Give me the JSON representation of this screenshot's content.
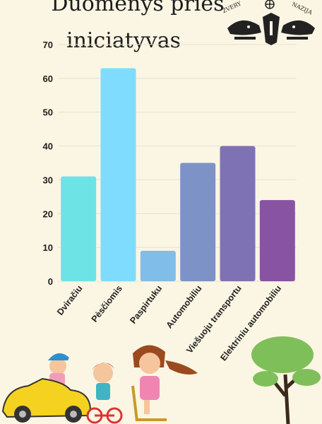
{
  "title_line1": "Duomenys prieš",
  "title_line2": "iniciatyvas",
  "logo": {
    "text_left": "ŽVERY",
    "text_right": "NAZIJA"
  },
  "chart_data": {
    "type": "bar",
    "title": "Duomenys prieš iniciatyvas",
    "categories": [
      "Dviračiu",
      "Pėsčiomis",
      "Paspirtuku",
      "Automobiliu",
      "Viešuoju transportu",
      "Elektriniu automobiliu"
    ],
    "values": [
      31,
      63,
      9,
      35,
      40,
      24
    ],
    "colors": [
      "#6ee3e6",
      "#7fdcff",
      "#80bde9",
      "#7d93c7",
      "#7f72b4",
      "#8953a4"
    ],
    "ylim": [
      0,
      70
    ],
    "yticks": [
      0,
      10,
      20,
      30,
      40,
      50,
      60,
      70
    ],
    "grid": true,
    "xlabel": "",
    "ylabel": ""
  },
  "icons": [
    "car-icon",
    "child-on-car-icon",
    "child-on-bike-icon",
    "girl-on-scooter-icon",
    "tree-icon",
    "folk-birds-logo-icon"
  ]
}
